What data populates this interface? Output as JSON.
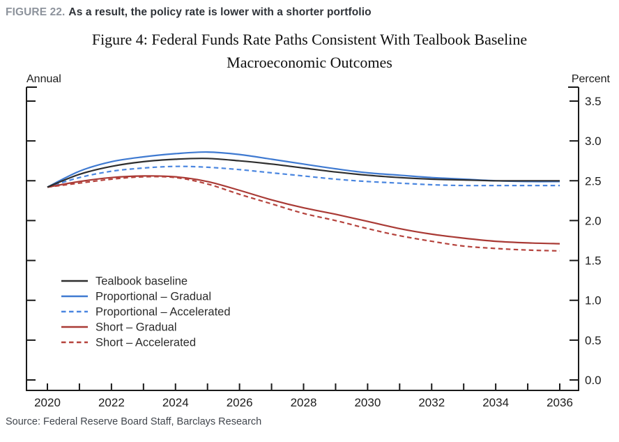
{
  "page": {
    "header_prefix": "FIGURE 22.",
    "header_text": "As a result, the policy rate is lower with a shorter portfolio",
    "source": "Source: Federal Reserve Board Staff, Barclays Research"
  },
  "chart_data": {
    "type": "line",
    "title_line1": "Figure 4: Federal Funds Rate Paths Consistent With Tealbook Baseline",
    "title_line2": "Macroeconomic Outcomes",
    "left_axis_label": "Annual",
    "right_axis_label": "Percent",
    "x": [
      2020,
      2021,
      2022,
      2023,
      2024,
      2025,
      2026,
      2027,
      2028,
      2029,
      2030,
      2031,
      2032,
      2033,
      2034,
      2035,
      2036
    ],
    "x_tick_labels": [
      "2020",
      "2022",
      "2024",
      "2026",
      "2028",
      "2030",
      "2032",
      "2034",
      "2036"
    ],
    "ylim": [
      0.0,
      3.5
    ],
    "y_ticks": [
      0.0,
      0.5,
      1.0,
      1.5,
      2.0,
      2.5,
      3.0,
      3.5
    ],
    "y_tick_labels": [
      "0.0",
      "0.5",
      "1.0",
      "1.5",
      "2.0",
      "2.5",
      "3.0",
      "3.5"
    ],
    "grid": false,
    "legend_position": "inside-left",
    "axis_color": "#1a1a1a",
    "series": [
      {
        "name": "Tealbook baseline",
        "color": "#2e2e2e",
        "dash": false,
        "values": [
          2.42,
          2.58,
          2.68,
          2.74,
          2.77,
          2.78,
          2.75,
          2.71,
          2.66,
          2.61,
          2.57,
          2.54,
          2.52,
          2.51,
          2.5,
          2.5,
          2.5
        ]
      },
      {
        "name": "Proportional – Gradual",
        "color": "#3f7ad1",
        "dash": false,
        "values": [
          2.42,
          2.62,
          2.74,
          2.8,
          2.84,
          2.86,
          2.83,
          2.77,
          2.71,
          2.65,
          2.6,
          2.57,
          2.54,
          2.52,
          2.5,
          2.49,
          2.49
        ]
      },
      {
        "name": "Proportional – Accelerated",
        "color": "#4a86e0",
        "dash": true,
        "values": [
          2.42,
          2.54,
          2.62,
          2.66,
          2.68,
          2.67,
          2.64,
          2.6,
          2.56,
          2.52,
          2.49,
          2.47,
          2.45,
          2.44,
          2.44,
          2.44,
          2.44
        ]
      },
      {
        "name": "Short – Gradual",
        "color": "#a93a35",
        "dash": false,
        "values": [
          2.42,
          2.49,
          2.54,
          2.56,
          2.55,
          2.49,
          2.38,
          2.26,
          2.16,
          2.08,
          1.99,
          1.9,
          1.83,
          1.78,
          1.74,
          1.72,
          1.71
        ]
      },
      {
        "name": "Short – Accelerated",
        "color": "#b5423c",
        "dash": true,
        "values": [
          2.42,
          2.47,
          2.52,
          2.55,
          2.54,
          2.46,
          2.33,
          2.21,
          2.09,
          2.0,
          1.9,
          1.81,
          1.74,
          1.68,
          1.65,
          1.63,
          1.62
        ]
      }
    ]
  }
}
